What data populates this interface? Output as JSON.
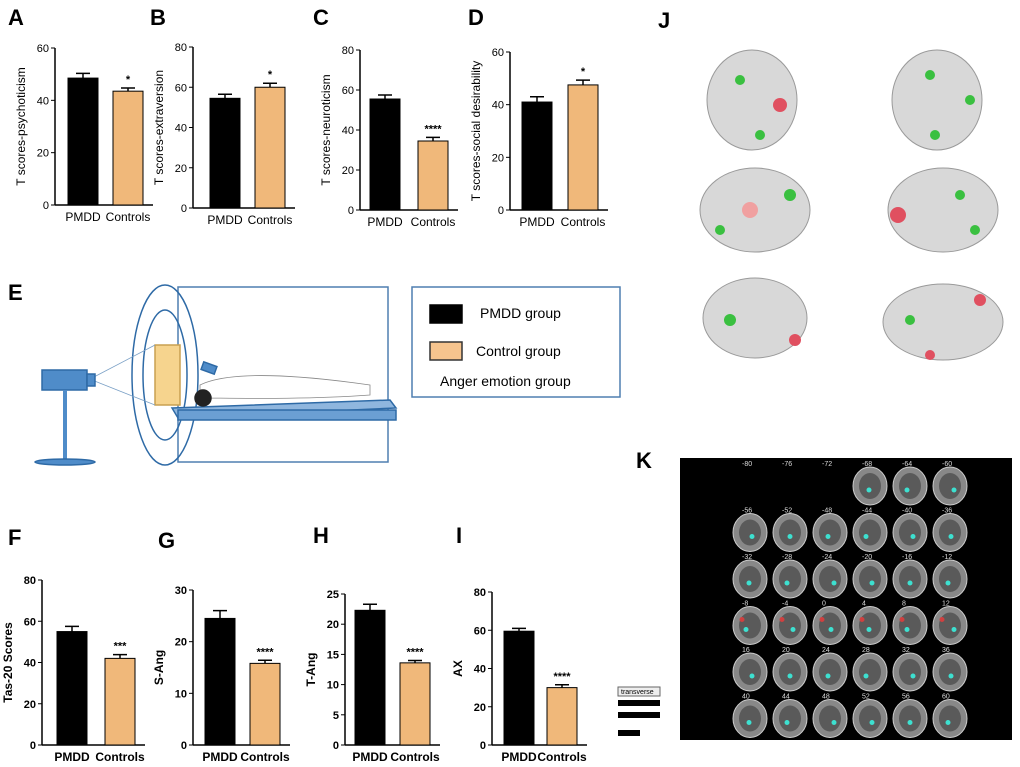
{
  "chart_data": [
    {
      "type": "bar",
      "panel": "A",
      "ylabel": "T scores-psychoticism",
      "categories": [
        "PMDD",
        "Controls"
      ],
      "values": [
        48.5,
        43.5
      ],
      "errors": [
        1.8,
        1.2
      ],
      "colors": [
        "#000000",
        "#f0b87a"
      ],
      "ylim": [
        0,
        60
      ],
      "yticks": [
        0,
        20,
        40,
        60
      ],
      "annotation": "*"
    },
    {
      "type": "bar",
      "panel": "B",
      "ylabel": "T scores-extraversion",
      "categories": [
        "PMDD",
        "Controls"
      ],
      "values": [
        54.5,
        60
      ],
      "errors": [
        2,
        2
      ],
      "colors": [
        "#000000",
        "#f0b87a"
      ],
      "ylim": [
        0,
        80
      ],
      "yticks": [
        0,
        20,
        40,
        60,
        80
      ],
      "annotation": "*"
    },
    {
      "type": "bar",
      "panel": "C",
      "ylabel": "T scores-neuroticism",
      "categories": [
        "PMDD",
        "Controls"
      ],
      "values": [
        55.5,
        34.5
      ],
      "errors": [
        2,
        1.8
      ],
      "colors": [
        "#000000",
        "#f0b87a"
      ],
      "ylim": [
        0,
        80
      ],
      "yticks": [
        0,
        20,
        40,
        60,
        80
      ],
      "annotation": "****"
    },
    {
      "type": "bar",
      "panel": "D",
      "ylabel": "T scores-social desirability",
      "categories": [
        "PMDD",
        "Controls"
      ],
      "values": [
        41,
        47.5
      ],
      "errors": [
        2,
        1.8
      ],
      "colors": [
        "#000000",
        "#f0b87a"
      ],
      "ylim": [
        0,
        60
      ],
      "yticks": [
        0,
        20,
        40,
        60
      ],
      "annotation": "*"
    },
    {
      "type": "bar",
      "panel": "F",
      "ylabel": "Tas-20 Scores",
      "categories": [
        "PMDD",
        "Controls"
      ],
      "values": [
        55,
        42
      ],
      "errors": [
        2.5,
        1.8
      ],
      "colors": [
        "#000000",
        "#f0b87a"
      ],
      "ylim": [
        0,
        80
      ],
      "yticks": [
        0,
        20,
        40,
        60,
        80
      ],
      "annotation": "***"
    },
    {
      "type": "bar",
      "panel": "G",
      "ylabel": "S-Ang",
      "categories": [
        "PMDD",
        "Controls"
      ],
      "values": [
        24.5,
        15.8
      ],
      "errors": [
        1.5,
        0.6
      ],
      "colors": [
        "#000000",
        "#f0b87a"
      ],
      "ylim": [
        0,
        30
      ],
      "yticks": [
        0,
        10,
        20,
        30
      ],
      "annotation": "****"
    },
    {
      "type": "bar",
      "panel": "H",
      "ylabel": "T-Ang",
      "categories": [
        "PMDD",
        "Controls"
      ],
      "values": [
        22.3,
        13.6
      ],
      "errors": [
        1,
        0.4
      ],
      "colors": [
        "#000000",
        "#f0b87a"
      ],
      "ylim": [
        0,
        25
      ],
      "yticks": [
        0,
        5,
        10,
        15,
        20,
        25
      ],
      "annotation": "****"
    },
    {
      "type": "bar",
      "panel": "I",
      "ylabel": "AX",
      "categories": [
        "PMDD",
        "Controls"
      ],
      "values": [
        59.5,
        30
      ],
      "errors": [
        1.5,
        1.5
      ],
      "colors": [
        "#000000",
        "#f0b87a"
      ],
      "ylim": [
        0,
        80
      ],
      "yticks": [
        0,
        20,
        40,
        60,
        80
      ],
      "annotation": "****"
    }
  ],
  "diagram_e": {
    "panel": "E",
    "legend": [
      "PMDD group",
      "Control group",
      "Anger emotion group"
    ]
  },
  "brain_j": {
    "panel": "J"
  },
  "slices_k": {
    "panel": "K",
    "view": "transverse",
    "slices": [
      "-80",
      "-76",
      "-72",
      "-68",
      "-64",
      "-60",
      "-56",
      "-52",
      "-48",
      "-44",
      "-40",
      "-36",
      "-32",
      "-28",
      "-24",
      "-20",
      "-16",
      "-12",
      "-8",
      "-4",
      "0",
      "4",
      "8",
      "12",
      "16",
      "20",
      "24",
      "28",
      "32",
      "36",
      "40",
      "44",
      "48",
      "52",
      "56",
      "60"
    ]
  }
}
